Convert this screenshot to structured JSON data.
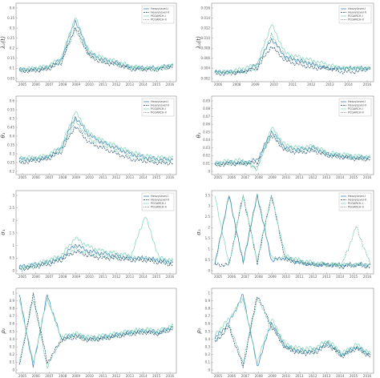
{
  "figure": {
    "colors": {
      "s1": "#3b7fb8",
      "s2": "#17405e",
      "s3": "#7fd3b8",
      "s4": "#2a9d7e",
      "frame": "#888888"
    }
  },
  "chart_data": [
    {
      "type": "line",
      "panel": "top-left",
      "ylabel": "λ₁(t)",
      "ylim": [
        0,
        0.45
      ],
      "yticks": [
        "0.4",
        "0.35",
        "0.3",
        "0.25",
        "0.2",
        "0.15",
        "0.1",
        "0.05"
      ],
      "x": [
        2005,
        2006,
        2007,
        2008,
        2009,
        2010,
        2011,
        2012,
        2013,
        2014,
        2015,
        2016
      ],
      "xticks": [
        "2005",
        "2006",
        "2007",
        "2008",
        "2009",
        "2010",
        "2011",
        "2012",
        "2013",
        "2014",
        "2015",
        "2016"
      ],
      "legend": [
        "HeavyLevel-I",
        "HeavyLevel-II",
        "PCGARCH-I",
        "PCGARCH-II"
      ],
      "series": [
        {
          "values": [
            0.06,
            0.06,
            0.07,
            0.12,
            0.36,
            0.16,
            0.12,
            0.1,
            0.07,
            0.07,
            0.07,
            0.09
          ]
        },
        {
          "values": [
            0.05,
            0.05,
            0.06,
            0.1,
            0.32,
            0.14,
            0.1,
            0.09,
            0.06,
            0.06,
            0.06,
            0.08
          ]
        },
        {
          "values": [
            0.06,
            0.07,
            0.08,
            0.13,
            0.38,
            0.17,
            0.13,
            0.11,
            0.08,
            0.07,
            0.07,
            0.09
          ]
        },
        {
          "values": [
            0.05,
            0.06,
            0.07,
            0.11,
            0.3,
            0.15,
            0.11,
            0.09,
            0.07,
            0.06,
            0.06,
            0.08
          ]
        }
      ]
    },
    {
      "type": "line",
      "panel": "top-right",
      "ylabel": "λ₂(t)",
      "ylim": [
        0,
        0.02
      ],
      "yticks": [
        "0.016",
        "0.014",
        "0.012",
        "0.010",
        "0.008",
        "0.006",
        "0.004",
        "0.002"
      ],
      "x": [
        2005,
        2006,
        2007,
        2008,
        2009,
        2010,
        2011,
        2012,
        2013,
        2014,
        2015,
        2016
      ],
      "xticks": [
        "2006",
        "2008",
        "2009",
        "2010",
        "2011",
        "2012",
        "2013",
        "2014",
        "2016"
      ],
      "legend": [
        "HeavyLevel-I",
        "HeavyLevel-II",
        "PCGARCH-I",
        "PCGARCH-II"
      ],
      "series": [
        {
          "values": [
            0.002,
            0.002,
            0.002,
            0.004,
            0.011,
            0.006,
            0.005,
            0.004,
            0.003,
            0.003,
            0.003,
            0.003
          ]
        },
        {
          "values": [
            0.0015,
            0.0015,
            0.002,
            0.003,
            0.009,
            0.005,
            0.004,
            0.003,
            0.003,
            0.002,
            0.002,
            0.003
          ]
        },
        {
          "values": [
            0.002,
            0.002,
            0.003,
            0.004,
            0.015,
            0.007,
            0.006,
            0.005,
            0.004,
            0.003,
            0.003,
            0.003
          ]
        },
        {
          "values": [
            0.002,
            0.002,
            0.002,
            0.003,
            0.012,
            0.006,
            0.005,
            0.004,
            0.003,
            0.003,
            0.003,
            0.003
          ]
        }
      ]
    },
    {
      "type": "line",
      "panel": "row2-left",
      "ylabel": "θ₁",
      "ylim": [
        0.2,
        0.6
      ],
      "yticks": [
        "0.6",
        "0.55",
        "0.5",
        "0.45",
        "0.4",
        "0.35",
        "0.3",
        "0.25",
        "0.2"
      ],
      "x": [
        2005,
        2006,
        2007,
        2008,
        2009,
        2010,
        2011,
        2012,
        2013,
        2014,
        2015,
        2016
      ],
      "xticks": [
        "2005",
        "2006",
        "2007",
        "2008",
        "2009",
        "2010",
        "2011",
        "2012",
        "2013",
        "2014",
        "2015",
        "2016"
      ],
      "legend": [
        "HeavyLevel-I",
        "HeavyLevel-II",
        "PCGARCH-I",
        "PCGARCH-II"
      ],
      "series": [
        {
          "values": [
            0.27,
            0.27,
            0.28,
            0.33,
            0.5,
            0.4,
            0.36,
            0.33,
            0.3,
            0.28,
            0.27,
            0.27
          ]
        },
        {
          "values": [
            0.25,
            0.26,
            0.27,
            0.31,
            0.45,
            0.36,
            0.33,
            0.3,
            0.27,
            0.26,
            0.25,
            0.25
          ]
        },
        {
          "values": [
            0.28,
            0.28,
            0.29,
            0.34,
            0.53,
            0.41,
            0.37,
            0.34,
            0.31,
            0.29,
            0.28,
            0.28
          ]
        },
        {
          "values": [
            0.26,
            0.27,
            0.28,
            0.32,
            0.48,
            0.38,
            0.35,
            0.32,
            0.29,
            0.27,
            0.26,
            0.26
          ]
        }
      ]
    },
    {
      "type": "line",
      "panel": "row2-right",
      "ylabel": "θ₂",
      "ylim": [
        0,
        0.09
      ],
      "yticks": [
        "0.09",
        "0.08",
        "0.07",
        "0.06",
        "0.05",
        "0.04",
        "0.03",
        "0.02",
        "0.01",
        "0"
      ],
      "x": [
        2005,
        2006,
        2007,
        2008,
        2009,
        2010,
        2011,
        2012,
        2013,
        2014,
        2015,
        2016
      ],
      "xticks": [
        "2005",
        "2006",
        "2007",
        "2008",
        "2009",
        "2010",
        "2011",
        "2012",
        "2013",
        "2014",
        "2015",
        "2016"
      ],
      "legend": [
        "HeavyLevel-I",
        "HeavyLevel-II",
        "PCGARCH-I",
        "PCGARCH-II"
      ],
      "series": [
        {
          "values": [
            0.01,
            0.012,
            0.012,
            0.015,
            0.05,
            0.03,
            0.028,
            0.03,
            0.022,
            0.02,
            0.018,
            0.018
          ]
        },
        {
          "values": [
            0.008,
            0.01,
            0.01,
            0.012,
            0.045,
            0.026,
            0.024,
            0.026,
            0.02,
            0.018,
            0.016,
            0.016
          ]
        },
        {
          "values": [
            0.012,
            0.014,
            0.015,
            0.004,
            0.055,
            0.033,
            0.03,
            0.032,
            0.024,
            0.022,
            0.02,
            0.019
          ]
        },
        {
          "values": [
            0.009,
            0.011,
            0.011,
            0.006,
            0.048,
            0.028,
            0.026,
            0.028,
            0.021,
            0.019,
            0.017,
            0.017
          ]
        }
      ]
    },
    {
      "type": "line",
      "panel": "row3-left",
      "ylabel": "σ₁",
      "ylim": [
        0,
        3.5
      ],
      "yticks": [
        "3",
        "2.5",
        "2",
        "1.5",
        "1",
        "0.5",
        "0"
      ],
      "x": [
        2005,
        2006,
        2007,
        2008,
        2009,
        2010,
        2011,
        2012,
        2013,
        2014,
        2015,
        2016
      ],
      "xticks": [
        "2005",
        "2006",
        "2007",
        "2008",
        "2009",
        "2010",
        "2011",
        "2012",
        "2013",
        "2014",
        "2015",
        "2016"
      ],
      "legend": [
        "HeavyLevel-I",
        "HeavyLevel-II",
        "PCGARCH-I",
        "PCGARCH-II"
      ],
      "series": [
        {
          "values": [
            0.2,
            0.3,
            0.4,
            0.6,
            1.2,
            0.9,
            0.8,
            0.7,
            0.6,
            0.6,
            0.5,
            0.4
          ]
        },
        {
          "values": [
            0.1,
            0.2,
            0.3,
            0.5,
            0.9,
            0.7,
            0.6,
            0.6,
            0.5,
            0.5,
            0.4,
            0.3
          ]
        },
        {
          "values": [
            0.2,
            0.3,
            0.5,
            0.7,
            1.5,
            1.1,
            0.9,
            0.8,
            0.7,
            2.5,
            0.6,
            0.5
          ]
        },
        {
          "values": [
            0.1,
            0.2,
            0.4,
            0.6,
            1.0,
            0.8,
            0.7,
            0.6,
            0.6,
            0.6,
            0.5,
            0.4
          ]
        }
      ]
    },
    {
      "type": "line",
      "panel": "row3-right",
      "ylabel": "σ₂",
      "ylim": [
        0,
        3.5
      ],
      "yticks": [
        "3.5",
        "3",
        "2.5",
        "2",
        "1.5",
        "1",
        "0.5",
        "0"
      ],
      "x": [
        2005,
        2006,
        2007,
        2008,
        2009,
        2010,
        2011,
        2012,
        2013,
        2014,
        2015,
        2016
      ],
      "xticks": [
        "2005",
        "2006",
        "2007",
        "2008",
        "2009",
        "2010",
        "2011",
        "2012",
        "2013",
        "2014",
        "2015",
        "2016"
      ],
      "legend": [
        "HeavyLevel-I",
        "HeavyLevel-II",
        "PCGARCH-I",
        "PCGARCH-II"
      ],
      "series": [
        {
          "values": [
            0.3,
            3.4,
            0.4,
            3.4,
            0.5,
            0.6,
            0.4,
            0.3,
            0.3,
            0.3,
            0.3,
            0.3
          ]
        },
        {
          "values": [
            0.3,
            0.3,
            3.4,
            0.4,
            3.4,
            0.5,
            0.4,
            0.3,
            0.3,
            0.2,
            0.3,
            0.2
          ]
        },
        {
          "values": [
            3.4,
            0.3,
            3.4,
            0.5,
            3.4,
            0.7,
            0.5,
            0.4,
            0.3,
            0.3,
            0.3,
            0.3
          ]
        },
        {
          "values": [
            0.3,
            3.4,
            0.4,
            3.4,
            0.6,
            0.6,
            0.4,
            0.3,
            0.3,
            0.3,
            2.0,
            0.3
          ]
        }
      ]
    },
    {
      "type": "line",
      "panel": "bottom-left",
      "ylabel": "ρ₁",
      "ylim": [
        0,
        1
      ],
      "yticks": [
        "1",
        "0.9",
        "0.8",
        "0.7",
        "0.6",
        "0.5",
        "0.4",
        "0.3",
        "0.2",
        "0.1",
        "0"
      ],
      "x": [
        2005,
        2006,
        2007,
        2008,
        2009,
        2010,
        2011,
        2012,
        2013,
        2014,
        2015,
        2016
      ],
      "xticks": [
        "2005",
        "2006",
        "2007",
        "2008",
        "2009",
        "2010",
        "2011",
        "2012",
        "2013",
        "2014",
        "2015",
        "2016"
      ],
      "series": [
        {
          "values": [
            0.95,
            0.05,
            0.95,
            0.4,
            0.45,
            0.4,
            0.42,
            0.45,
            0.48,
            0.5,
            0.48,
            0.55
          ]
        },
        {
          "values": [
            0.05,
            0.95,
            0.1,
            0.38,
            0.42,
            0.38,
            0.4,
            0.43,
            0.46,
            0.48,
            0.46,
            0.53
          ]
        },
        {
          "values": [
            0.9,
            0.1,
            0.9,
            0.42,
            0.47,
            0.42,
            0.44,
            0.47,
            0.5,
            0.52,
            0.5,
            0.57
          ]
        },
        {
          "values": [
            0.1,
            0.9,
            0.05,
            0.39,
            0.44,
            0.39,
            0.41,
            0.44,
            0.47,
            0.49,
            0.47,
            0.54
          ]
        }
      ]
    },
    {
      "type": "line",
      "panel": "bottom-right",
      "ylabel": "ρ₂",
      "ylim": [
        0,
        1
      ],
      "yticks": [
        "1",
        "0.9",
        "0.8",
        "0.7",
        "0.6",
        "0.5",
        "0.4",
        "0.3",
        "0.2",
        "0.1",
        "0"
      ],
      "x": [
        2005,
        2006,
        2007,
        2008,
        2009,
        2010,
        2011,
        2012,
        2013,
        2014,
        2015,
        2016
      ],
      "xticks": [
        "2005",
        "2006",
        "2007",
        "2008",
        "2009",
        "2010",
        "2011",
        "2012",
        "2013",
        "2014",
        "2015",
        "2016"
      ],
      "series": [
        {
          "values": [
            0.4,
            0.6,
            0.95,
            0.05,
            0.6,
            0.3,
            0.25,
            0.25,
            0.35,
            0.2,
            0.3,
            0.2
          ]
        },
        {
          "values": [
            0.35,
            0.55,
            0.05,
            0.95,
            0.55,
            0.28,
            0.22,
            0.22,
            0.32,
            0.18,
            0.28,
            0.18
          ]
        },
        {
          "values": [
            0.45,
            0.65,
            0.9,
            0.1,
            0.65,
            0.33,
            0.28,
            0.28,
            0.38,
            0.22,
            0.33,
            0.22
          ]
        },
        {
          "values": [
            0.38,
            0.58,
            0.1,
            0.9,
            0.58,
            0.3,
            0.24,
            0.24,
            0.34,
            0.19,
            0.29,
            0.19
          ]
        }
      ]
    }
  ]
}
